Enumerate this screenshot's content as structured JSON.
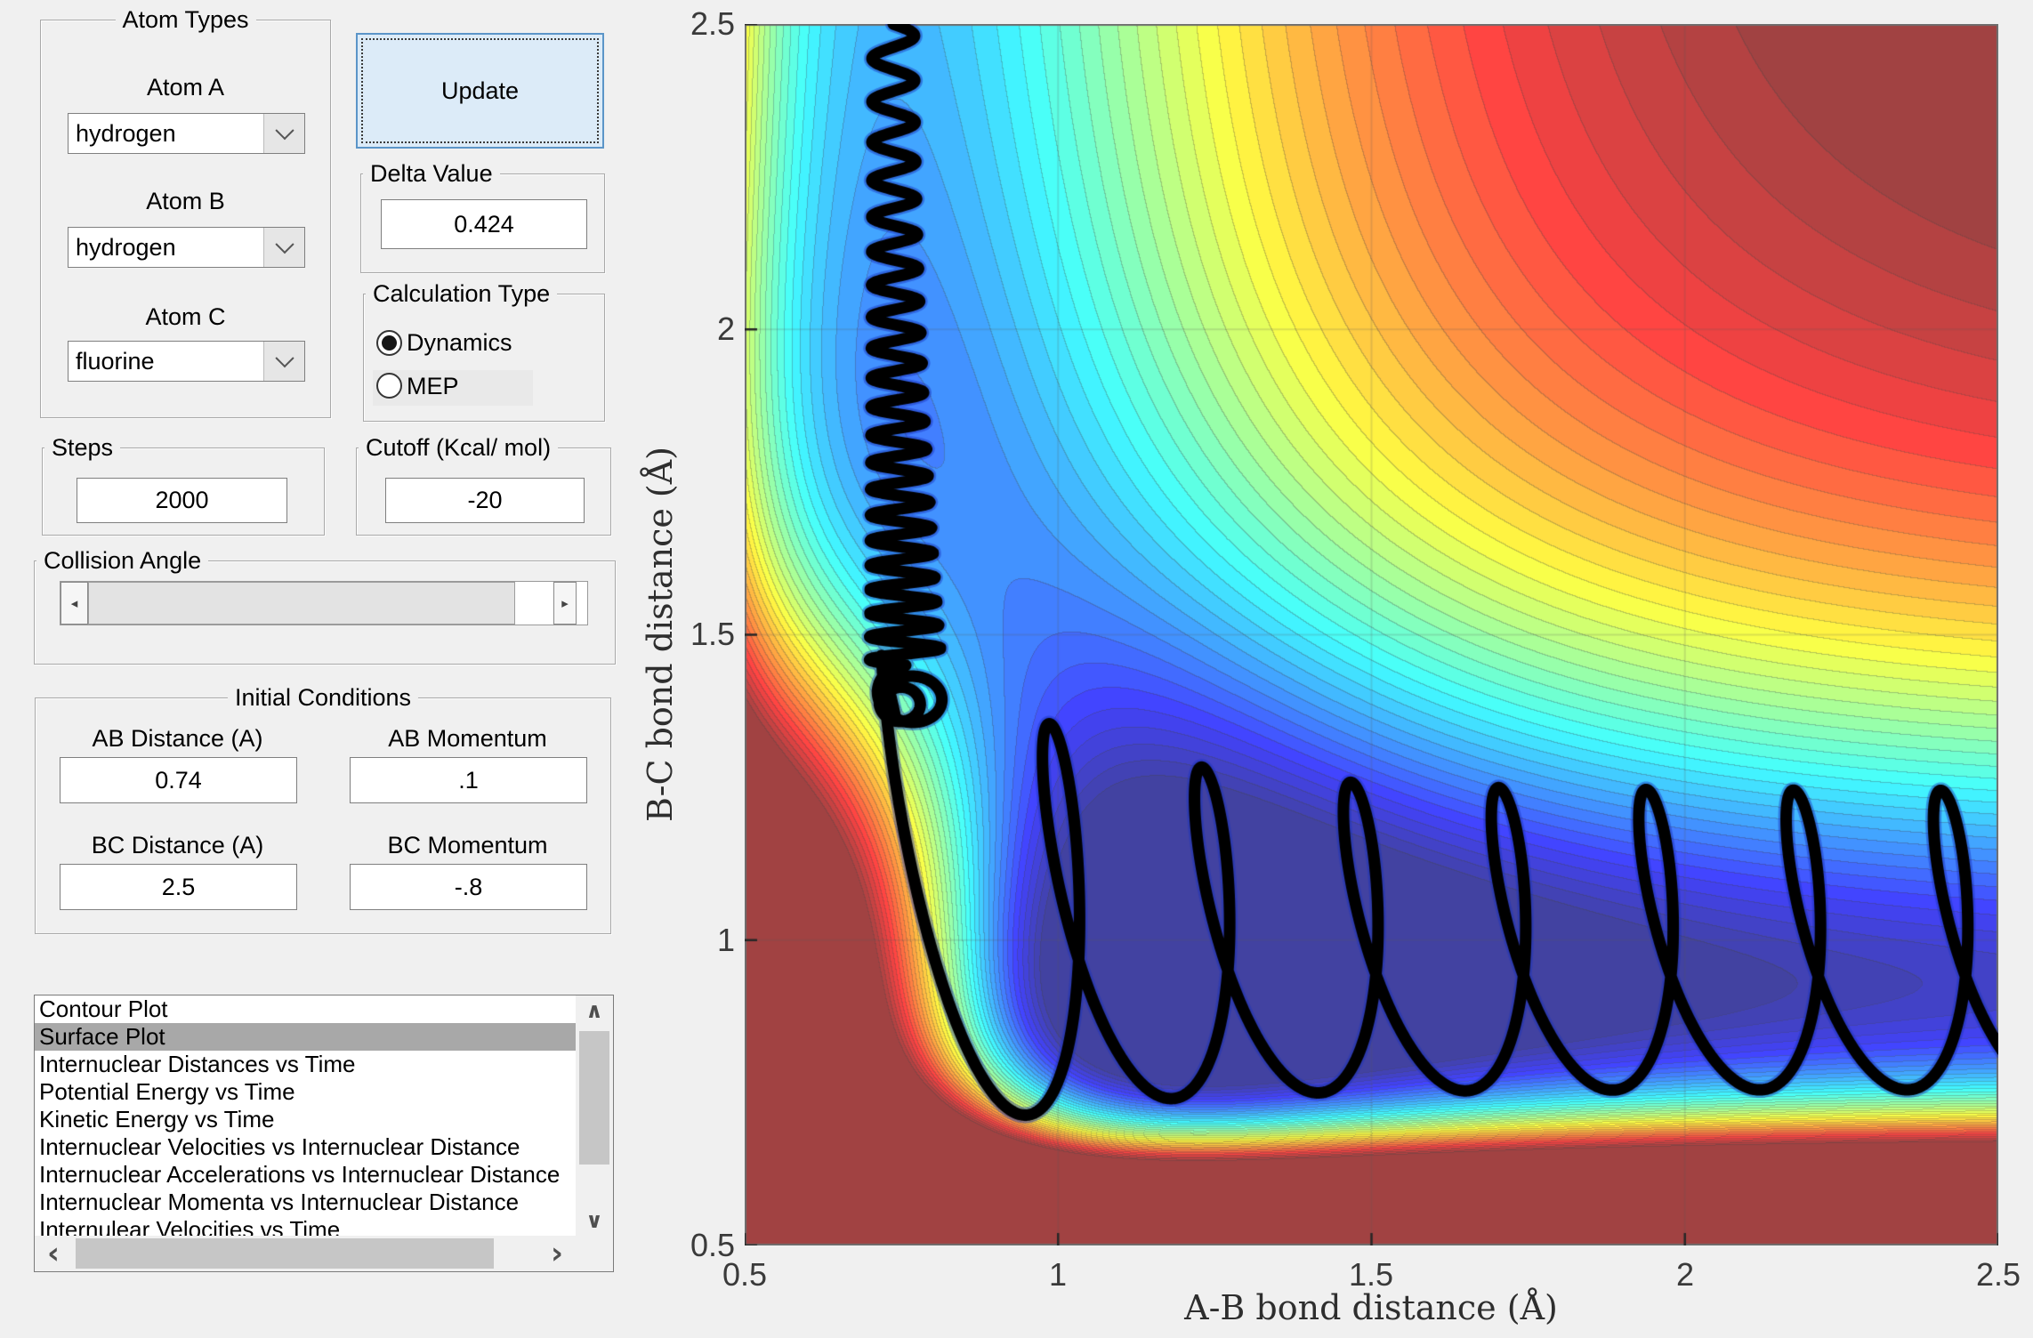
{
  "panels": {
    "atom_types": {
      "title": "Atom Types",
      "fields": [
        {
          "label": "Atom A",
          "value": "hydrogen"
        },
        {
          "label": "Atom B",
          "value": "hydrogen"
        },
        {
          "label": "Atom C",
          "value": "fluorine"
        }
      ]
    },
    "update_button": {
      "label": "Update"
    },
    "delta_value": {
      "title": "Delta Value",
      "value": "0.424"
    },
    "calculation_type": {
      "title": "Calculation Type",
      "options": [
        {
          "label": "Dynamics",
          "selected": true
        },
        {
          "label": "MEP",
          "selected": false
        }
      ]
    },
    "steps": {
      "title": "Steps",
      "value": "2000"
    },
    "cutoff": {
      "title": "Cutoff (Kcal/ mol)",
      "value": "-20"
    },
    "collision_angle": {
      "title": "Collision Angle"
    },
    "initial_conditions": {
      "title": "Initial Conditions",
      "fields": [
        {
          "label": "AB Distance (A)",
          "value": "0.74"
        },
        {
          "label": "AB Momentum",
          "value": ".1"
        },
        {
          "label": "BC Distance (A)",
          "value": "2.5"
        },
        {
          "label": "BC Momentum",
          "value": "-.8"
        }
      ]
    },
    "plot_list": {
      "selected_index": 1,
      "items": [
        "Contour Plot",
        "Surface Plot",
        "Internuclear Distances vs Time",
        "Potential Energy vs Time",
        "Kinetic Energy vs Time",
        "Internuclear Velocities vs Internuclear Distance",
        "Internuclear Accelerations vs Internuclear Distance",
        "Internuclear Momenta vs Internuclear Distance",
        "Internulear Velocities vs Time"
      ]
    }
  },
  "ui_icons": {
    "scroll_up": "∧",
    "scroll_down": "∨",
    "scroll_left": "‹",
    "scroll_right": "›",
    "slider_left": "◂",
    "slider_right": "▸"
  },
  "chart_data": {
    "type": "contour",
    "xlabel": "A-B bond distance (Å)",
    "ylabel": "B-C bond distance (Å)",
    "xlim": [
      0.5,
      2.5
    ],
    "ylim": [
      0.5,
      2.5
    ],
    "x_ticks": [
      "0.5",
      "1",
      "1.5",
      "2",
      "2.5"
    ],
    "y_ticks": [
      "0.5",
      "1",
      "1.5",
      "2",
      "2.5"
    ],
    "grid_lines": [
      1,
      1.5,
      2
    ],
    "colormap": "jet",
    "n_levels": 40,
    "surface_alpha": 0.74,
    "value_range": [
      -155,
      -14
    ],
    "potential": {
      "morse_AB": {
        "D": 110,
        "a": 2.1,
        "r0": 0.74
      },
      "morse_BC": {
        "D": 141,
        "a": 2.6,
        "r0": 0.93
      },
      "corner_repulsion": {
        "K": 290,
        "cx": 0.55,
        "sx": 0.38,
        "cy": 0.85,
        "sy": 0.58
      }
    },
    "trajectory": {
      "color": "#000000",
      "line_width": 13,
      "fringe_color": "rgba(25,50,190,0.45)",
      "fringe_width": 18,
      "descent": {
        "x_center": 0.737,
        "x_drift": 0.02,
        "amp0": 0.034,
        "amp1": 0.058,
        "wiggles": 21,
        "bunch": 0.55,
        "y_start": 2.5,
        "y_end": 1.45
      },
      "knot": {
        "cx": 0.757,
        "cy": 1.403,
        "loops": 2.4,
        "r": 0.055,
        "r_decay": 0.5,
        "squash": 0.86
      },
      "valley": {
        "x0": 0.795,
        "drift": 0.235,
        "b": 0.07,
        "shear": -0.13,
        "y_center": 1.0,
        "yc_boost": 0.12,
        "amp": 0.245,
        "amp_boost": 0.19,
        "decay": 6,
        "theta0": 0.55,
        "theta_max": 47.75,
        "x_stop": 2.56
      }
    }
  }
}
